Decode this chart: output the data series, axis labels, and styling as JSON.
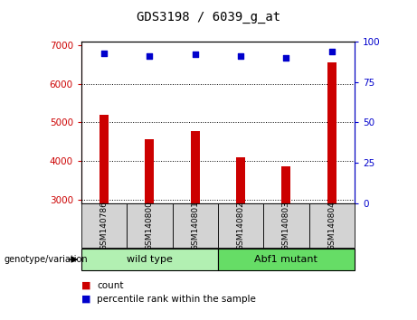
{
  "title": "GDS3198 / 6039_g_at",
  "samples": [
    "GSM140786",
    "GSM140800",
    "GSM140801",
    "GSM140802",
    "GSM140803",
    "GSM140804"
  ],
  "bar_values": [
    5200,
    4560,
    4780,
    4100,
    3850,
    6550
  ],
  "percentile_values": [
    93,
    91,
    92,
    91,
    90,
    94
  ],
  "bar_color": "#cc0000",
  "dot_color": "#0000cc",
  "ylim_left": [
    2900,
    7100
  ],
  "ylim_right": [
    0,
    100
  ],
  "yticks_left": [
    3000,
    4000,
    5000,
    6000,
    7000
  ],
  "yticks_right": [
    0,
    25,
    50,
    75,
    100
  ],
  "genotype_label": "genotype/variation",
  "legend_count_label": "count",
  "legend_percentile_label": "percentile rank within the sample",
  "background_color": "#ffffff",
  "plot_bg_color": "#ffffff",
  "grid_color": "#000000",
  "left_axis_color": "#cc0000",
  "right_axis_color": "#0000cc",
  "tick_label_area_color": "#d3d3d3",
  "group_wt_color": "#b2f0b2",
  "group_mut_color": "#66dd66",
  "wild_type_label": "wild type",
  "mutant_label": "Abf1 mutant"
}
